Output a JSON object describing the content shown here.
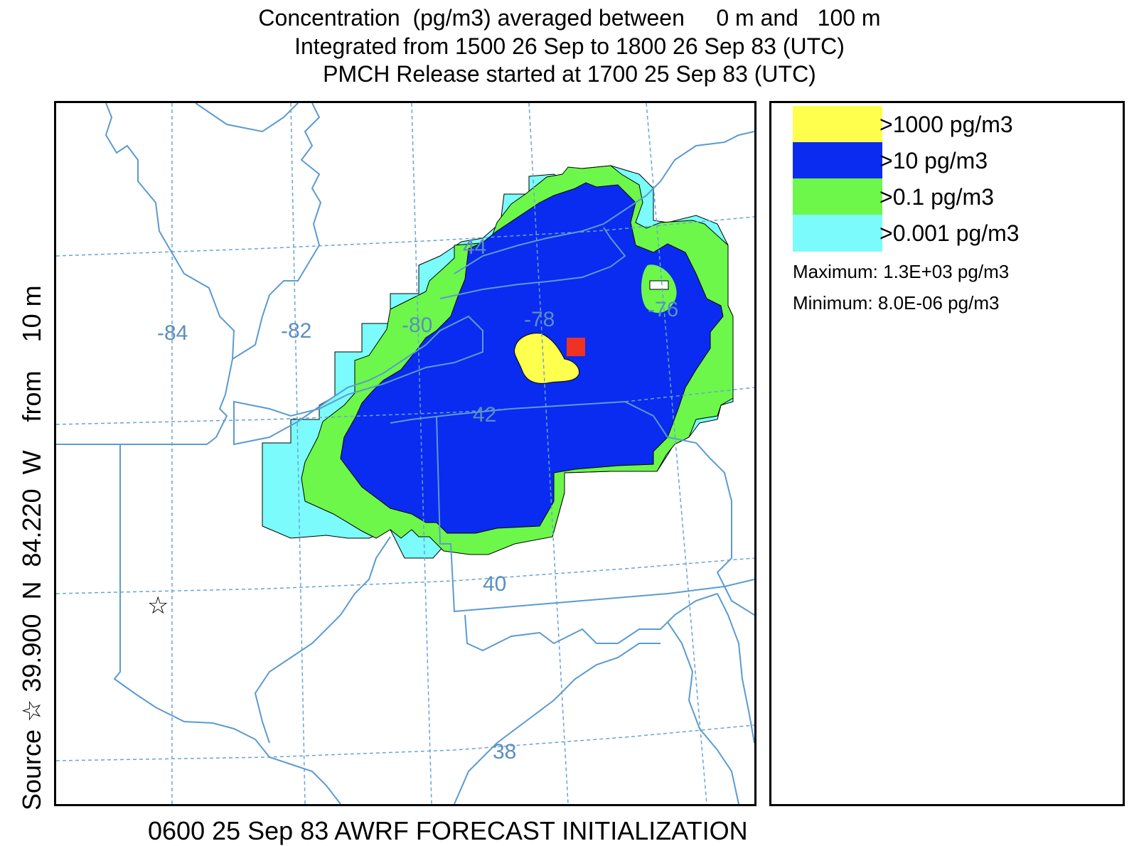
{
  "title": {
    "line1": "Concentration  (pg/m3) averaged between     0 m and   100 m",
    "line2": "Integrated from 1500 26 Sep to 1800 26 Sep 83 (UTC)",
    "line3": "PMCH Release started at 1700 25 Sep 83 (UTC)"
  },
  "side_label": "Source ☆ 39.900  N  84.220  W    from    10 m",
  "footer": "0600 25 Sep 83 AWRF FORECAST INITIALIZATION",
  "map": {
    "longitude_labels": [
      "-84",
      "-82",
      "-80",
      "-78",
      "-76"
    ],
    "latitude_labels": [
      "44",
      "42",
      "40",
      "38"
    ],
    "source_marker": "☆",
    "colors": {
      "boundary": "#5b9bd1",
      "grid": "#6aa3d6",
      "level_1000": "#ffff4d",
      "level_10": "#0a2bf0",
      "level_0_1": "#6df74b",
      "level_0_001": "#7bfbfb",
      "peak_cell": "#ee3322"
    }
  },
  "legend": {
    "items": [
      {
        "label": ">1000 pg/m3",
        "color": "#ffff4d"
      },
      {
        "label": ">10 pg/m3",
        "color": "#0a2bf0"
      },
      {
        "label": ">0.1 pg/m3",
        "color": "#6df74b"
      },
      {
        "label": ">0.001 pg/m3",
        "color": "#7bfbfb"
      }
    ],
    "maximum": "Maximum: 1.3E+03 pg/m3",
    "minimum": "Minimum: 8.0E-06 pg/m3"
  }
}
